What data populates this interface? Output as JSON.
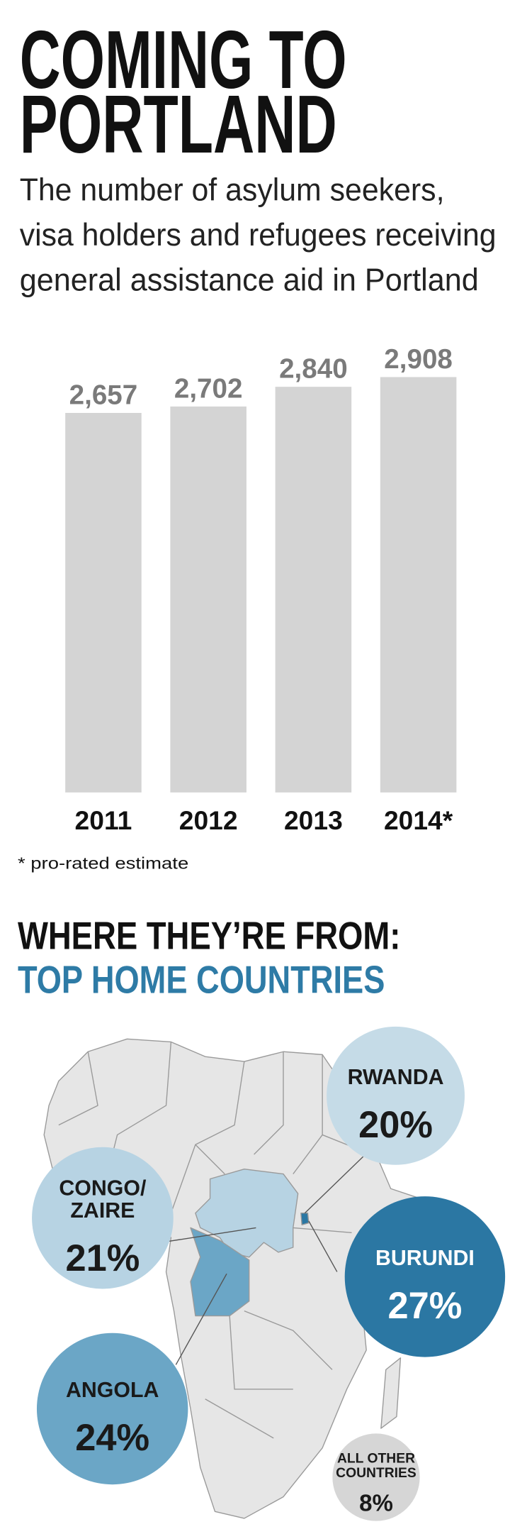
{
  "chart_data": [
    {
      "type": "bar",
      "title": [
        "COMING TO",
        "PORTLAND"
      ],
      "subtitle": [
        "The number of asylum seekers,",
        "visa holders and refugees receiving",
        "general assistance aid in Portland"
      ],
      "categories": [
        "2011",
        "2012",
        "2013",
        "2014*"
      ],
      "values": [
        2657,
        2702,
        2840,
        2908
      ],
      "value_labels": [
        "2,657",
        "2,702",
        "2,840",
        "2,908"
      ],
      "color": "#d4d4d4",
      "ylim": [
        0,
        3000
      ],
      "footnote": "* pro-rated estimate"
    },
    {
      "type": "bubble",
      "title": "WHERE THEY’RE FROM:",
      "subtitle": "TOP HOME COUNTRIES",
      "subtitle_color": "#2e7ba6",
      "categories": [
        [
          "RWANDA"
        ],
        [
          "CONGO/",
          "ZAIRE"
        ],
        [
          "BURUNDI"
        ],
        [
          "ANGOLA"
        ],
        [
          "ALL OTHER",
          "COUNTRIES"
        ]
      ],
      "values": [
        20,
        21,
        27,
        24,
        8
      ],
      "value_labels": [
        "20%",
        "21%",
        "27%",
        "24%",
        "8%"
      ],
      "colors": [
        "#c5dbe7",
        "#b7d3e3",
        "#2b77a3",
        "#6ba6c6",
        "#d6d6d6"
      ]
    }
  ]
}
